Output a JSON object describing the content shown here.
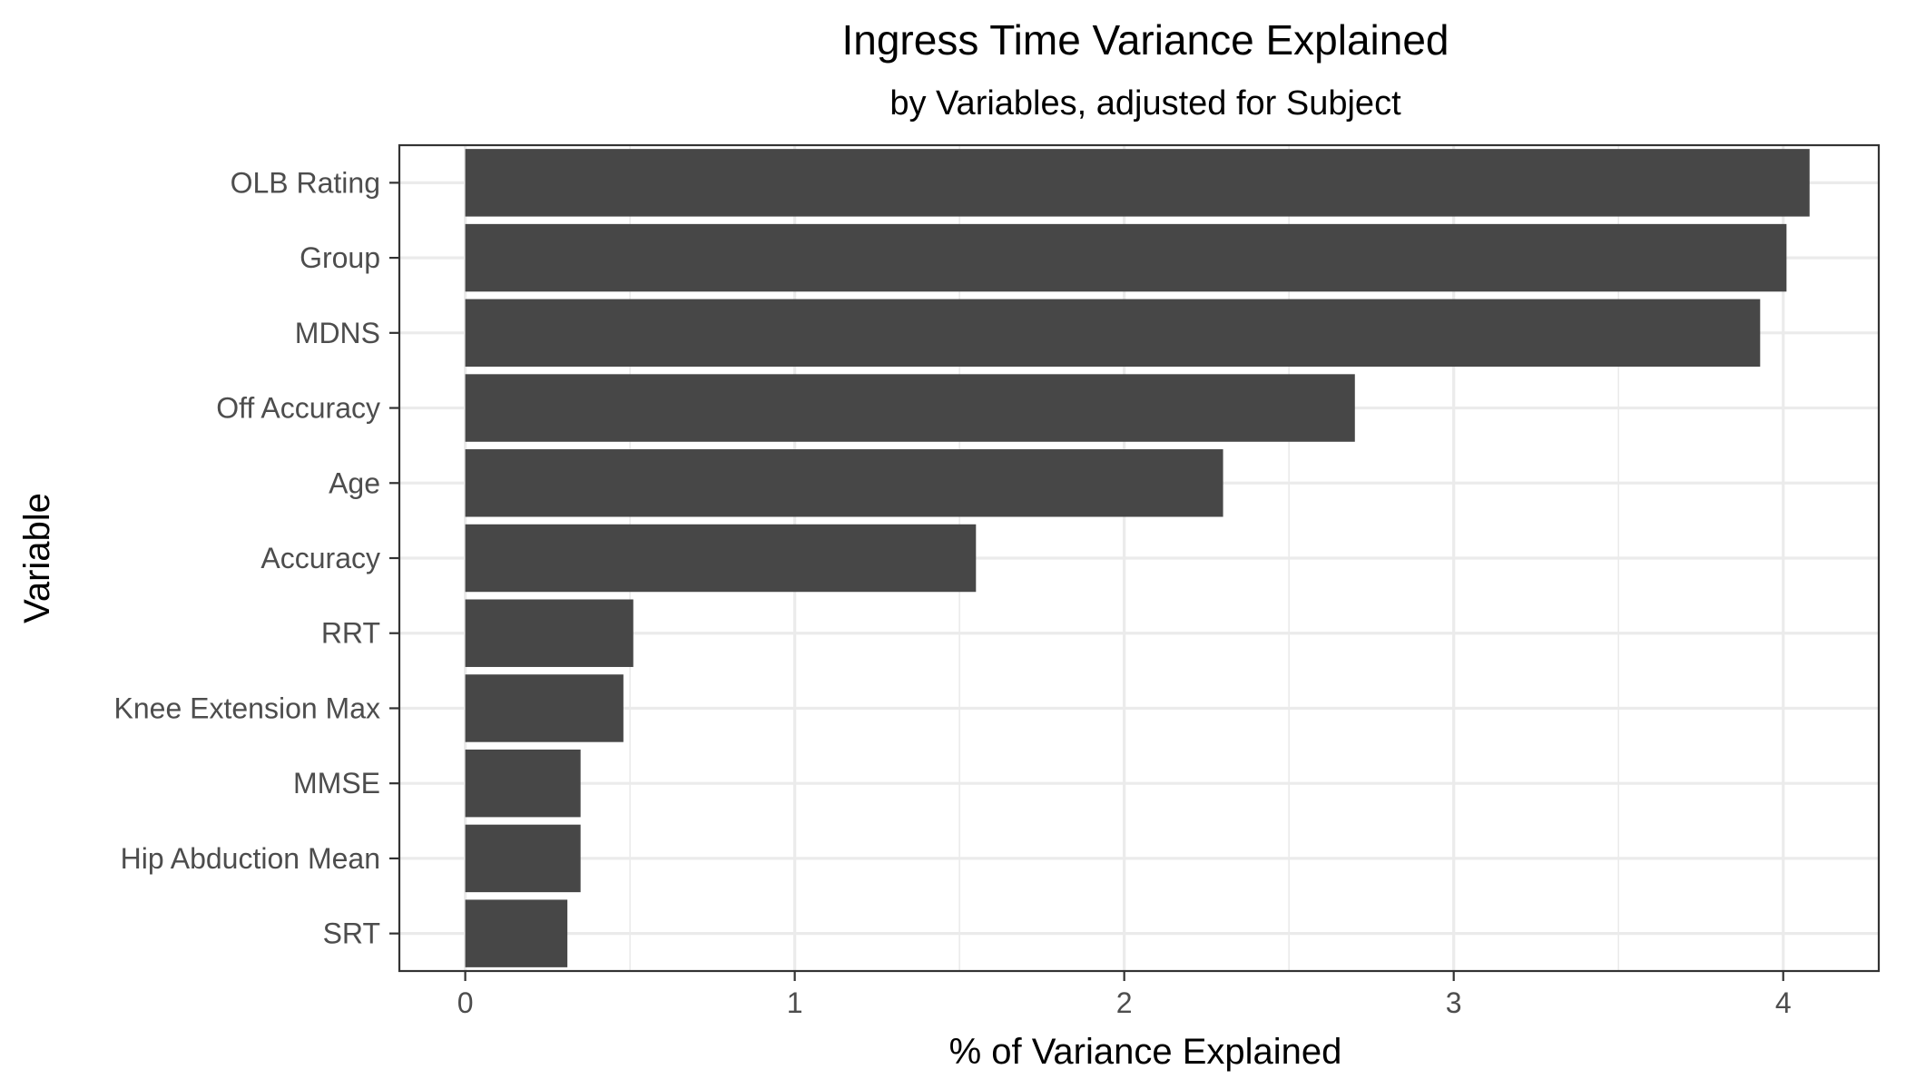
{
  "chart_data": {
    "type": "bar",
    "orientation": "horizontal",
    "title": "Ingress Time Variance Explained",
    "subtitle": "by Variables, adjusted for Subject",
    "xlabel": "% of Variance Explained",
    "ylabel": "Variable",
    "categories": [
      "OLB Rating",
      "Group",
      "MDNS",
      "Off Accuracy",
      "Age",
      "Accuracy",
      "RRT",
      "Knee Extension Max",
      "MMSE",
      "Hip Abduction Mean",
      "SRT"
    ],
    "values": [
      4.08,
      4.01,
      3.93,
      2.7,
      2.3,
      1.55,
      0.51,
      0.48,
      0.35,
      0.35,
      0.31
    ],
    "xlim": [
      -0.2,
      4.29
    ],
    "xticks": [
      0,
      1,
      2,
      3,
      4
    ],
    "grid": true,
    "bar_color": "#474747",
    "grid_color": "#ebebeb"
  }
}
